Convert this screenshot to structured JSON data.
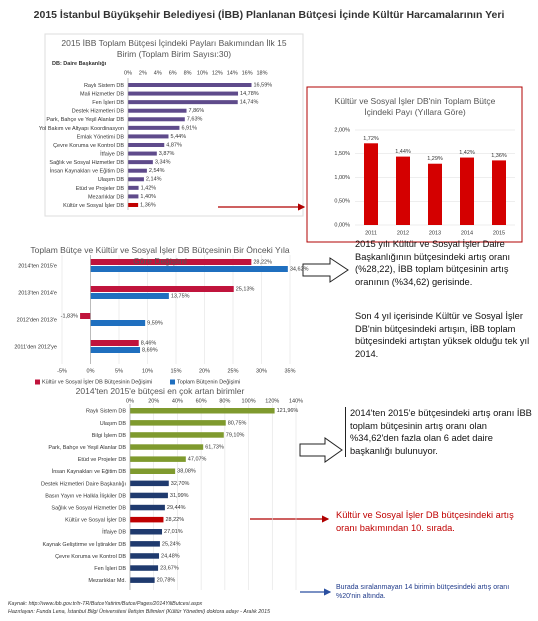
{
  "title": "2015 İstanbul Büyükşehir Belediyesi (İBB) Planlanan Bütçesi İçinde Kültür Harcamalarının Yeri",
  "notes": [
    "2015 yılı Kültür ve Sosyal İşler Daire Başkanlığının bütçesindeki artış oranı (%28,22), İBB toplam bütçesinin artış oranının (%34,62) gerisinde.",
    "Son 4 yıl içerisinde Kültür ve Sosyal İşler DB'nin bütçesindeki artışın, İBB toplam bütçesindeki artıştan yüksek olduğu tek yıl 2014.",
    "2014'ten 2015'e bütçesindeki artış oranı İBB toplam bütçesinin artış oranı olan %34,62'den fazla olan 6 adet daire başkanlığı bulunuyor.",
    "Kültür ve Sosyal İşler DB bütçesindeki artış oranı bakımından 10. sırada.",
    "Burada sıralanmayan 14 birimin bütçesindeki artış oranı %20'nin altında."
  ],
  "source": [
    "Kaynak: http://www.ibb.gov.tr/tr-TR/ButceYatirim/Butce/Pages/2014YiliButcesi.aspx",
    "Hazırlayan: Funda Lena, İstanbul Bilgi Üniversitesi İletişim Bilimleri (Kültür Yönetimi) doktora adayı - Aralık 2015"
  ],
  "chart_data": [
    {
      "type": "hbar",
      "title": "2015 İBB Toplam Bütçesi İçindeki Payları Bakımından İlk 15 Birim (Toplam Birim Sayısı:30)",
      "subtitle": "DB: Daire Başkanlığı",
      "categories": [
        "Raylı Sistem DB",
        "Mali Hizmetler DB",
        "Fen İşleri DB",
        "Destek Hizmetleri DB",
        "Park, Bahçe ve Yeşil Alanlar DB",
        "Yol Bakım ve Altyapı Koordinasyon",
        "Emlak Yönetimi DB",
        "Çevre Koruma ve Kontrol DB",
        "İtfaiye DB",
        "Sağlık ve Sosyal Hizmetler DB",
        "İnsan Kaynakları ve Eğitim DB",
        "Ulaşım DB",
        "Etüd ve Projeler DB",
        "Mezarlıklar DB",
        "Kültür ve Sosyal İşler DB"
      ],
      "values": [
        16.59,
        14.78,
        14.74,
        7.86,
        7.63,
        6.91,
        5.44,
        4.87,
        3.87,
        3.34,
        2.54,
        2.14,
        1.42,
        1.4,
        1.36
      ],
      "value_labels": [
        "16,59%",
        "14,78%",
        "14,74%",
        "7,86%",
        "7,63%",
        "6,91%",
        "5,44%",
        "4,87%",
        "3,87%",
        "3,34%",
        "2,54%",
        "2,14%",
        "1,42%",
        "1,40%",
        "1,36%"
      ],
      "colors": [
        "#5f4b8b",
        "#5f4b8b",
        "#5f4b8b",
        "#5f4b8b",
        "#5f4b8b",
        "#5f4b8b",
        "#5f4b8b",
        "#5f4b8b",
        "#5f4b8b",
        "#5f4b8b",
        "#5f4b8b",
        "#5f4b8b",
        "#5f4b8b",
        "#5f4b8b",
        "#c00000"
      ],
      "xlim": [
        0,
        18
      ],
      "xticks": [
        {
          "value": 0,
          "label": "0%"
        },
        {
          "value": 2,
          "label": "2%"
        },
        {
          "value": 4,
          "label": "4%"
        },
        {
          "value": 6,
          "label": "6%"
        },
        {
          "value": 8,
          "label": "8%"
        },
        {
          "value": 10,
          "label": "10%"
        },
        {
          "value": 12,
          "label": "12%"
        },
        {
          "value": 14,
          "label": "14%"
        },
        {
          "value": 16,
          "label": "16%"
        },
        {
          "value": 18,
          "label": "18%"
        }
      ],
      "grid": false
    },
    {
      "type": "column",
      "title": "Kültür ve Sosyal İşler DB'nin Toplam Bütçe İçindeki Payı (Yıllara Göre)",
      "categories": [
        "2011",
        "2012",
        "2013",
        "2014",
        "2015"
      ],
      "values": [
        1.72,
        1.44,
        1.29,
        1.42,
        1.36
      ],
      "value_labels": [
        "1,72%",
        "1,44%",
        "1,29%",
        "1,42%",
        "1,36%"
      ],
      "color": "#d40000",
      "ylim": [
        0,
        2
      ],
      "yticks": [
        {
          "value": 0,
          "label": "0,00%"
        },
        {
          "value": 0.5,
          "label": "0,50%"
        },
        {
          "value": 1,
          "label": "1,00%"
        },
        {
          "value": 1.5,
          "label": "1,50%"
        },
        {
          "value": 2,
          "label": "2,00%"
        }
      ],
      "grid": true
    },
    {
      "type": "hbar",
      "title": "Toplam Bütçe ve Kültür ve Sosyal İşler DB Bütçesinin Bir Önceki Yıla Göre Değişimi",
      "categories": [
        "2014'ten 2015'e",
        "2013'ten 2014'e",
        "2012'den 2013'e",
        "2011'den 2012'ye"
      ],
      "series": [
        {
          "name": "Kültür ve Sosyal İşler DB Bütçesinin Değişimi",
          "color": "#c0143c",
          "values": [
            28.22,
            25.13,
            -1.83,
            8.46
          ],
          "value_labels": [
            "28,22%",
            "25,13%",
            "-1,83%",
            "8,46%"
          ]
        },
        {
          "name": "Toplam Bütçenin Değişimi",
          "color": "#1f6fbf",
          "values": [
            34.62,
            13.75,
            9.59,
            8.69
          ],
          "value_labels": [
            "34,62%",
            "13,75%",
            "9,59%",
            "8,69%"
          ]
        }
      ],
      "xlim": [
        -5,
        35
      ],
      "xticks": [
        {
          "value": -5,
          "label": "-5%"
        },
        {
          "value": 0,
          "label": "0%"
        },
        {
          "value": 5,
          "label": "5%"
        },
        {
          "value": 10,
          "label": "10%"
        },
        {
          "value": 15,
          "label": "15%"
        },
        {
          "value": 20,
          "label": "20%"
        },
        {
          "value": 25,
          "label": "25%"
        },
        {
          "value": 30,
          "label": "30%"
        },
        {
          "value": 35,
          "label": "35%"
        }
      ],
      "grid": true
    },
    {
      "type": "hbar",
      "title": "2014'ten 2015'e bütçesi en çok artan birimler",
      "categories": [
        "Raylı Sistem DB",
        "Ulaşım DB",
        "Bilgi İşlem DB",
        "Park, Bahçe ve Yeşil Alanlar DB",
        "Etüd ve Projeler DB",
        "İnsan Kaynakları ve Eğitim DB",
        "Destek Hizmetleri Daire Başkanlığı",
        "Basın Yayın ve Halkla İlişkiler DB",
        "Sağlık ve Sosyal Hizmetler DB",
        "Kültür ve Sosyal İşler DB",
        "İtfaiye DB",
        "Kaynak Geliştirme ve İştirakler DB",
        "Çevre Koruma ve Kontrol DB",
        "Fen İşleri DB",
        "Mezarlıklar Md."
      ],
      "values": [
        121.96,
        80.75,
        79.1,
        61.73,
        47.07,
        38.08,
        32.7,
        31.99,
        29.44,
        28.22,
        27.01,
        25.24,
        24.48,
        23.67,
        20.78
      ],
      "value_labels": [
        "121,96%",
        "80,75%",
        "79,10%",
        "61,73%",
        "47,07%",
        "38,08%",
        "32,70%",
        "31,99%",
        "29,44%",
        "28,22%",
        "27,01%",
        "25,24%",
        "24,48%",
        "23,67%",
        "20,78%"
      ],
      "colors": [
        "#7f9a2e",
        "#7f9a2e",
        "#7f9a2e",
        "#7f9a2e",
        "#7f9a2e",
        "#7f9a2e",
        "#1f3a6e",
        "#1f3a6e",
        "#1f3a6e",
        "#c00000",
        "#1f3a6e",
        "#1f3a6e",
        "#1f3a6e",
        "#1f3a6e",
        "#1f3a6e"
      ],
      "xlim": [
        0,
        140
      ],
      "xticks": [
        {
          "value": 0,
          "label": "0%"
        },
        {
          "value": 20,
          "label": "20%"
        },
        {
          "value": 40,
          "label": "40%"
        },
        {
          "value": 60,
          "label": "60%"
        },
        {
          "value": 80,
          "label": "80%"
        },
        {
          "value": 100,
          "label": "100%"
        },
        {
          "value": 120,
          "label": "120%"
        },
        {
          "value": 140,
          "label": "140%"
        }
      ],
      "grid": true
    }
  ]
}
